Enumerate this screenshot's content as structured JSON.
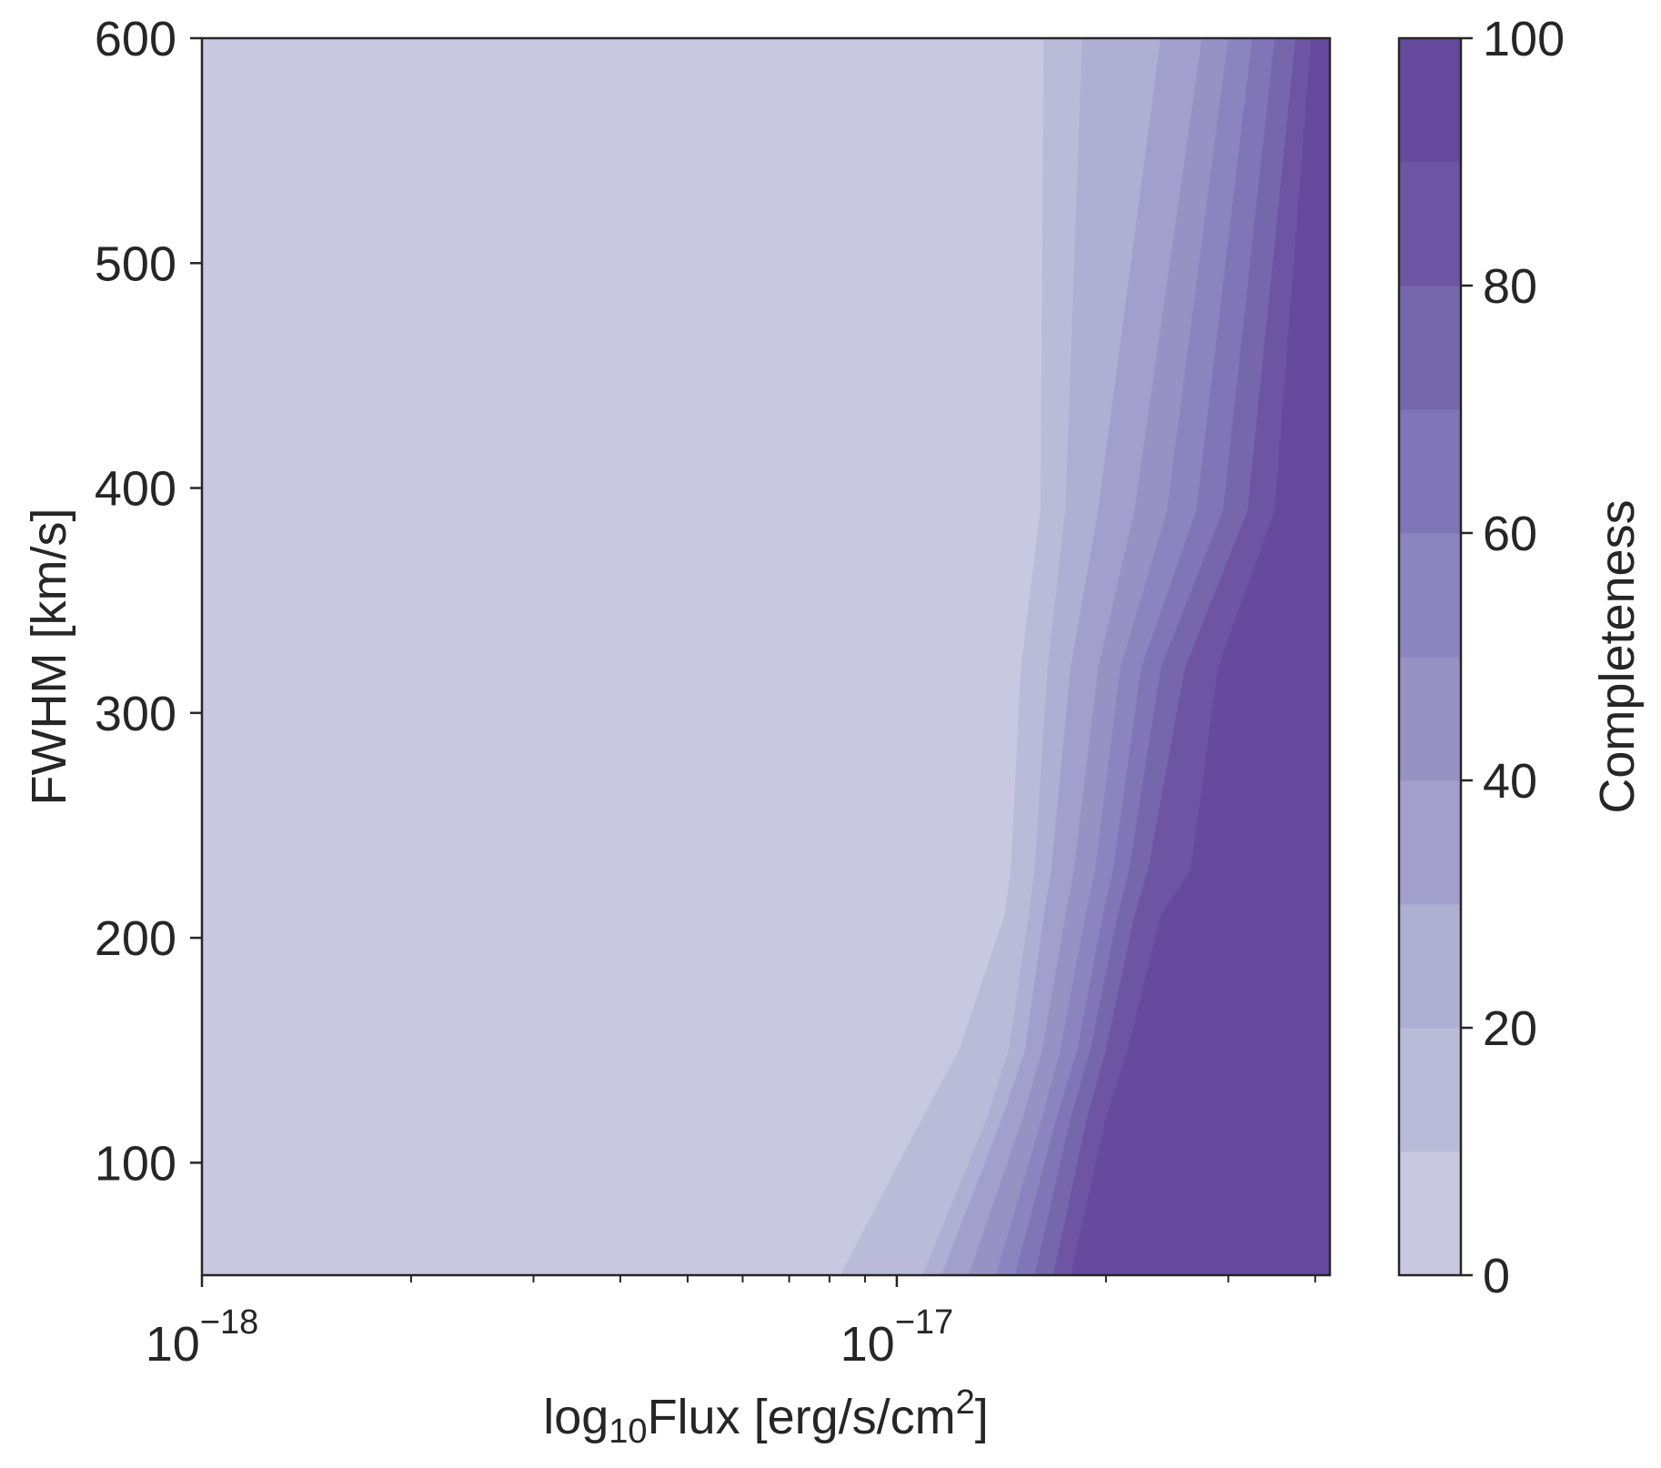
{
  "chart_data": {
    "type": "contourf",
    "xlabel": {
      "prefix": "log",
      "subscript": "10",
      "main": "Flux [erg/s/cm",
      "superscript": "2",
      "suffix": "]"
    },
    "ylabel": "FWHM [km/s]",
    "xscale": "log",
    "xlim": [
      1e-18,
      4.2e-17
    ],
    "ylim": [
      50,
      600
    ],
    "x_major_ticks": [
      {
        "value": 1e-18,
        "base": "10",
        "exponent": "−18"
      },
      {
        "value": 1e-17,
        "base": "10",
        "exponent": "−17"
      }
    ],
    "x_minor_ticks": [
      2e-18,
      3e-18,
      4e-18,
      5e-18,
      6e-18,
      7e-18,
      8e-18,
      9e-18,
      2e-17,
      3e-17,
      4e-17
    ],
    "y_ticks": [
      {
        "value": 100,
        "label": "100"
      },
      {
        "value": 200,
        "label": "200"
      },
      {
        "value": 300,
        "label": "300"
      },
      {
        "value": 400,
        "label": "400"
      },
      {
        "value": 500,
        "label": "500"
      },
      {
        "value": 600,
        "label": "600"
      }
    ],
    "colorbar": {
      "label": "Completeness",
      "range": [
        0,
        100
      ],
      "levels": [
        0,
        10,
        20,
        30,
        40,
        50,
        60,
        70,
        80,
        90,
        100
      ],
      "colors": [
        "#c8c8e1",
        "#babad9",
        "#afaed3",
        "#a39fcc",
        "#9891c4",
        "#8c84bf",
        "#8075b6",
        "#7667ac",
        "#6d55a4",
        "#664a9e"
      ],
      "ticks": [
        {
          "value": 0,
          "label": "0"
        },
        {
          "value": 20,
          "label": "20"
        },
        {
          "value": 40,
          "label": "40"
        },
        {
          "value": 60,
          "label": "60"
        },
        {
          "value": 80,
          "label": "80"
        },
        {
          "value": 100,
          "label": "100"
        }
      ]
    },
    "fwhm_grid": [
      50,
      120,
      150,
      210,
      230,
      320,
      390,
      600
    ],
    "contours": [
      {
        "level": 10,
        "flux": [
          8.3e-18,
          1.09e-17,
          1.23e-17,
          1.43e-17,
          1.46e-17,
          1.51e-17,
          1.61e-17,
          1.63e-17
        ]
      },
      {
        "level": 20,
        "flux": [
          1.09e-17,
          1.35e-17,
          1.45e-17,
          1.55e-17,
          1.58e-17,
          1.65e-17,
          1.75e-17,
          1.85e-17
        ]
      },
      {
        "level": 30,
        "flux": [
          1.16e-17,
          1.42e-17,
          1.53e-17,
          1.63e-17,
          1.67e-17,
          1.78e-17,
          1.95e-17,
          2.4e-17
        ]
      },
      {
        "level": 40,
        "flux": [
          1.27e-17,
          1.52e-17,
          1.62e-17,
          1.75e-17,
          1.8e-17,
          1.95e-17,
          2.2e-17,
          2.75e-17
        ]
      },
      {
        "level": 50,
        "flux": [
          1.39e-17,
          1.62e-17,
          1.72e-17,
          1.87e-17,
          1.93e-17,
          2.1e-17,
          2.45e-17,
          3e-17
        ]
      },
      {
        "level": 60,
        "flux": [
          1.48e-17,
          1.7e-17,
          1.82e-17,
          1.98e-17,
          2.05e-17,
          2.25e-17,
          2.7e-17,
          3.25e-17
        ]
      },
      {
        "level": 70,
        "flux": [
          1.58e-17,
          1.78e-17,
          1.9e-17,
          2.08e-17,
          2.16e-17,
          2.4e-17,
          2.95e-17,
          3.5e-17
        ]
      },
      {
        "level": 80,
        "flux": [
          1.68e-17,
          1.88e-17,
          2e-17,
          2.2e-17,
          2.3e-17,
          2.6e-17,
          3.2e-17,
          3.75e-17
        ]
      },
      {
        "level": 90,
        "flux": [
          1.78e-17,
          2e-17,
          2.15e-17,
          2.4e-17,
          2.65e-17,
          2.9e-17,
          3.5e-17,
          3.95e-17
        ]
      }
    ]
  }
}
